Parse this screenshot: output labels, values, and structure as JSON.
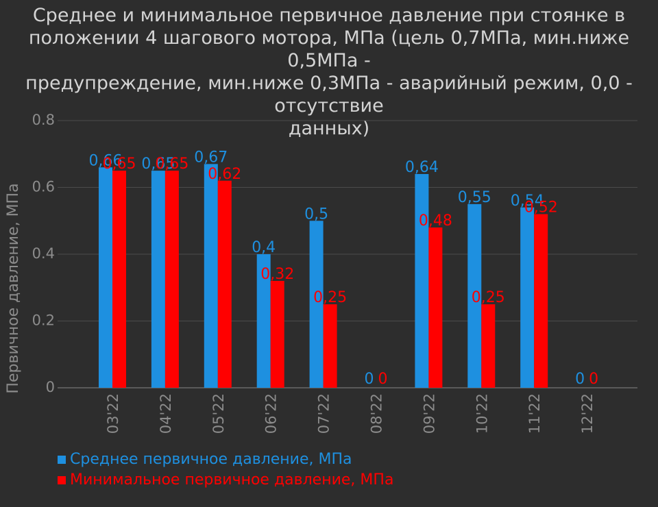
{
  "chart_data": {
    "type": "bar",
    "title_lines": [
      "Среднее и минимальное первичное давление при стоянке в",
      "положении 4 шагового мотора, МПа (цель 0,7МПа, мин.ниже 0,5МПа -",
      "предупреждение, мин.ниже 0,3МПа - аварийный режим, 0,0 - отсутствие",
      "данных)"
    ],
    "ylabel": "Первичное давление, МПа",
    "xlabel": "",
    "ylim": [
      0,
      0.8
    ],
    "yticks": [
      "0",
      "0.2",
      "0.4",
      "0.6",
      "0.8"
    ],
    "grid": true,
    "legend_position": "bottom-left",
    "categories": [
      "03'22",
      "04'22",
      "05'22",
      "06'22",
      "07'22",
      "08'22",
      "09'22",
      "10'22",
      "11'22",
      "12'22"
    ],
    "series": [
      {
        "name": "Среднее первичное давление, МПа",
        "color": "#1e90e0",
        "values": [
          0.66,
          0.65,
          0.67,
          0.4,
          0.5,
          0,
          0.64,
          0.55,
          0.54,
          0
        ],
        "labels": [
          "0,66",
          "0,65",
          "0,67",
          "0,4",
          "0,5",
          "0",
          "0,64",
          "0,55",
          "0,54",
          "0"
        ]
      },
      {
        "name": "Минимальное первичное давление, МПа",
        "color": "#ff0000",
        "values": [
          0.65,
          0.65,
          0.62,
          0.32,
          0.25,
          0,
          0.48,
          0.25,
          0.52,
          0
        ],
        "labels": [
          "0,65",
          "0,65",
          "0,62",
          "0,32",
          "0,25",
          "0",
          "0,48",
          "0,25",
          "0,52",
          "0"
        ]
      }
    ]
  }
}
